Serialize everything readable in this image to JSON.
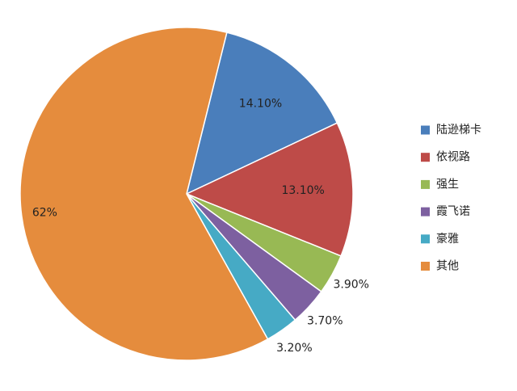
{
  "chart_data": {
    "type": "pie",
    "categories": [
      "陆逊梯卡",
      "依视路",
      "强生",
      "霞飞诺",
      "豪雅",
      "其他"
    ],
    "values": [
      14.1,
      13.1,
      3.9,
      3.7,
      3.2,
      62
    ],
    "value_labels": [
      "14.10%",
      "13.10%",
      "3.90%",
      "3.70%",
      "3.20%",
      "62%"
    ],
    "colors": [
      "#4a7ebb",
      "#be4b48",
      "#98b954",
      "#7d60a0",
      "#46aac5",
      "#e58c3d"
    ],
    "legend": "right"
  }
}
